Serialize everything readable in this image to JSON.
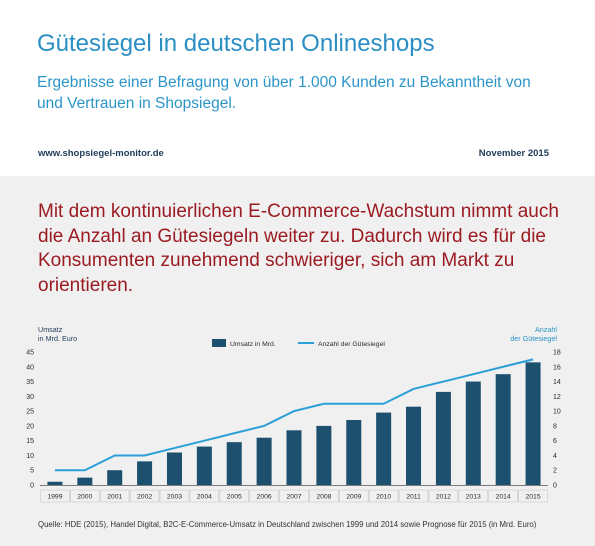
{
  "header": {
    "title": "Gütesiegel in deutschen Onlineshops",
    "subtitle": "Ergebnisse einer Befragung von über 1.000 Kunden zu Bekanntheit von und Vertrauen in Shopsiegel.",
    "url": "www.shopsiegel-monitor.de",
    "date": "November 2015"
  },
  "headline": "Mit dem kontinuierlichen E-Commerce-Wachstum nimmt auch die Anzahl an Gütesiegeln weiter zu. Dadurch wird es für die Konsumenten zunehmend schwieriger, sich am Markt zu orientieren.",
  "source": "Quelle: HDE (2015), Handel Digital, B2C-E-Commerce-Umsatz in Deutschland zwischen 1999 und 2014 sowie Prognose für 2015 (in Mrd. Euro)",
  "colors": {
    "bar": "#1d4f6e",
    "line": "#2ba0d8",
    "title": "#2b8fc4",
    "headline": "#9b1b22"
  },
  "chart_data": {
    "type": "bar+line",
    "categories": [
      "1999",
      "2000",
      "2001",
      "2002",
      "2003",
      "2004",
      "2005",
      "2006",
      "2007",
      "2008",
      "2009",
      "2010",
      "2011",
      "2012",
      "2013",
      "2014",
      "2015"
    ],
    "series": [
      {
        "name": "Umsatz in Mrd.",
        "type": "bar",
        "axis": "left",
        "values": [
          1.1,
          2.5,
          5.0,
          8.0,
          11.0,
          13.0,
          14.5,
          16.0,
          18.5,
          20.0,
          22.0,
          24.5,
          26.5,
          31.5,
          35.0,
          37.5,
          41.5
        ]
      },
      {
        "name": "Anzahl der Gütesiegel",
        "type": "line",
        "axis": "right",
        "values": [
          2,
          2,
          4,
          4,
          5,
          6,
          7,
          8,
          10,
          11,
          11,
          11,
          13,
          14,
          15,
          16,
          17
        ]
      }
    ],
    "ylabel_left": [
      "Umsatz",
      "in Mrd. Euro"
    ],
    "ylabel_right": [
      "Anzahl",
      "der Gütesiegel"
    ],
    "ylim_left": [
      0,
      45
    ],
    "yticks_left": [
      0,
      5,
      10,
      15,
      20,
      25,
      30,
      35,
      40,
      45
    ],
    "ylim_right": [
      0,
      18
    ],
    "yticks_right": [
      0,
      2,
      4,
      6,
      8,
      10,
      12,
      14,
      16,
      18
    ],
    "grid": false,
    "legend_position": "top"
  }
}
